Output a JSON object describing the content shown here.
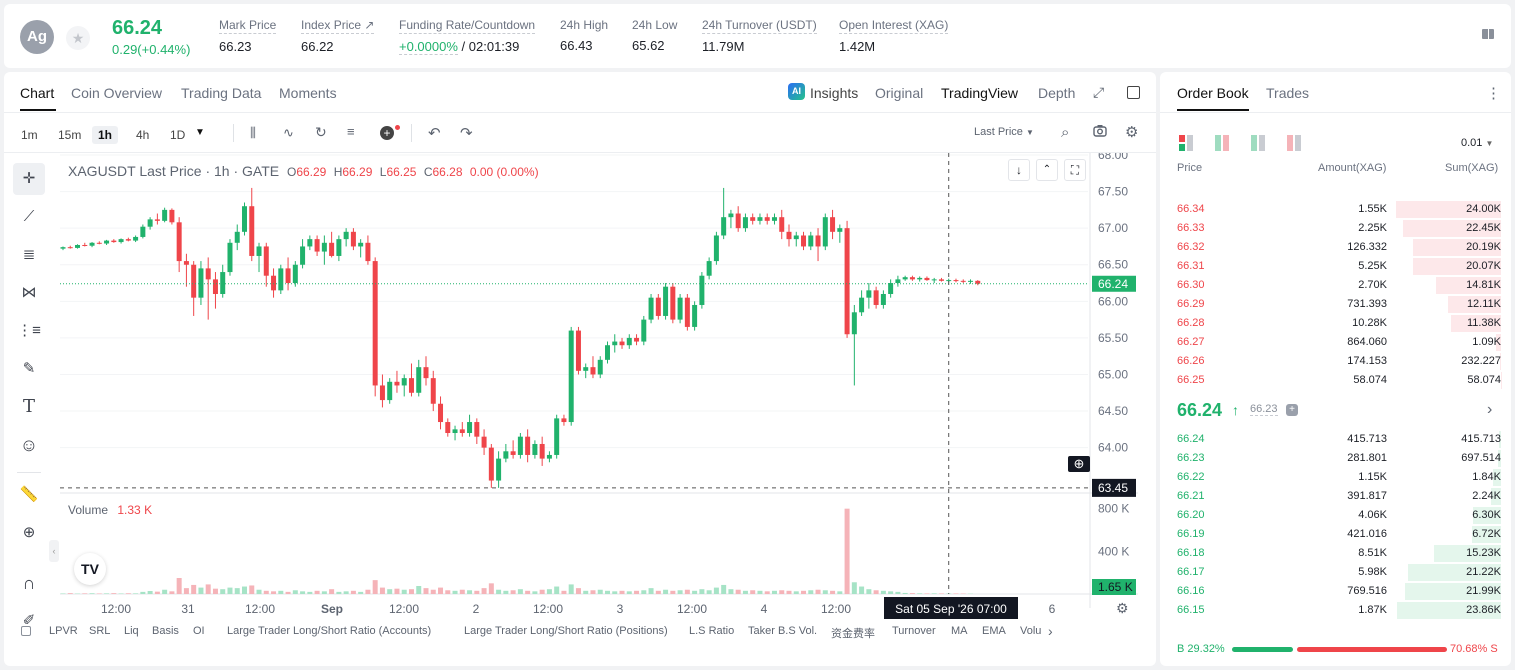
{
  "ticker": {
    "base_icon": "Ag",
    "last": "66.24",
    "change": "0.29(+0.44%)",
    "stats": [
      {
        "label": "Mark Price",
        "value": "66.23"
      },
      {
        "label": "Index Price ↗",
        "value": "66.22"
      },
      {
        "label": "Funding Rate/Countdown",
        "value": "+0.0000%",
        "value2": "/ 02:01:39"
      },
      {
        "label": "24h High",
        "value": "66.43"
      },
      {
        "label": "24h Low",
        "value": "65.62"
      },
      {
        "label": "24h Turnover (USDT)",
        "value": "11.79M"
      },
      {
        "label": "Open Interest (XAG)",
        "value": "1.42M"
      }
    ]
  },
  "chart_tabs": {
    "chart": "Chart",
    "overview": "Coin Overview",
    "data": "Trading Data",
    "moments": "Moments"
  },
  "view_tabs": {
    "insights": "Insights",
    "original": "Original",
    "tradingview": "TradingView",
    "depth": "Depth"
  },
  "timeframes": [
    "1m",
    "15m",
    "1h",
    "4h",
    "1D"
  ],
  "price_type": "Last Price",
  "legend": {
    "symbol": "XAGUSDT Last Price · 1h · GATE",
    "o": "66.29",
    "h": "66.29",
    "l": "66.25",
    "c": "66.28",
    "chg": "0.00 (0.00%)"
  },
  "volume_legend": {
    "label": "Volume",
    "value": "1.33 K"
  },
  "price_axis": [
    "68.00",
    "67.50",
    "67.00",
    "66.50",
    "66.00",
    "65.50",
    "65.00",
    "64.50",
    "64.00"
  ],
  "price_badge": "66.24",
  "cross_badge": "63.45",
  "volume_axis": [
    "800 K",
    "400 K"
  ],
  "volume_badge": "1.65 K",
  "time_axis": [
    "12:00",
    "31",
    "12:00",
    "Sep",
    "12:00",
    "2",
    "12:00",
    "3",
    "12:00",
    "4",
    "12:00",
    "6"
  ],
  "time_badge": "Sat 05 Sep '26   07:00",
  "indicators": [
    "LPVR",
    "SRL",
    "Liq",
    "Basis",
    "OI",
    "Large Trader Long/Short Ratio (Accounts)",
    "Large Trader Long/Short Ratio (Positions)",
    "L.S Ratio",
    "Taker B.S Vol.",
    "资金费率",
    "Turnover",
    "MA",
    "EMA",
    "Volu"
  ],
  "chart_data": {
    "type": "candlestick",
    "title": "XAGUSDT Last Price · 1h · GATE",
    "y_range": [
      63.4,
      68.0
    ],
    "last": 66.24,
    "candles": [
      [
        66.72,
        66.75,
        66.7,
        66.74
      ],
      [
        66.74,
        66.76,
        66.72,
        66.73
      ],
      [
        66.73,
        66.78,
        66.72,
        66.77
      ],
      [
        66.77,
        66.8,
        66.75,
        66.76
      ],
      [
        66.76,
        66.81,
        66.74,
        66.8
      ],
      [
        66.8,
        66.82,
        66.78,
        66.79
      ],
      [
        66.79,
        66.84,
        66.77,
        66.83
      ],
      [
        66.83,
        66.85,
        66.8,
        66.81
      ],
      [
        66.81,
        66.86,
        66.79,
        66.85
      ],
      [
        66.85,
        66.87,
        66.82,
        66.83
      ],
      [
        66.83,
        66.9,
        66.81,
        66.88
      ],
      [
        66.88,
        67.05,
        66.86,
        67.02
      ],
      [
        67.02,
        67.15,
        66.98,
        67.12
      ],
      [
        67.12,
        67.2,
        67.05,
        67.1
      ],
      [
        67.1,
        67.28,
        67.08,
        67.25
      ],
      [
        67.25,
        67.27,
        67.05,
        67.08
      ],
      [
        67.08,
        67.15,
        66.4,
        66.55
      ],
      [
        66.55,
        66.65,
        66.2,
        66.5
      ],
      [
        66.5,
        66.55,
        65.8,
        66.05
      ],
      [
        66.05,
        66.55,
        65.95,
        66.45
      ],
      [
        66.45,
        66.6,
        65.75,
        66.3
      ],
      [
        66.3,
        66.4,
        65.9,
        66.1
      ],
      [
        66.1,
        66.5,
        66.05,
        66.4
      ],
      [
        66.4,
        66.85,
        66.35,
        66.8
      ],
      [
        66.8,
        67.05,
        66.7,
        66.95
      ],
      [
        66.95,
        67.35,
        66.9,
        67.3
      ],
      [
        67.3,
        67.55,
        66.55,
        66.62
      ],
      [
        66.62,
        66.8,
        66.4,
        66.75
      ],
      [
        66.75,
        66.8,
        66.2,
        66.35
      ],
      [
        66.35,
        66.45,
        66.05,
        66.15
      ],
      [
        66.15,
        66.5,
        66.1,
        66.45
      ],
      [
        66.45,
        66.6,
        66.15,
        66.25
      ],
      [
        66.25,
        66.55,
        66.2,
        66.5
      ],
      [
        66.5,
        66.85,
        66.45,
        66.75
      ],
      [
        66.75,
        66.9,
        66.7,
        66.85
      ],
      [
        66.85,
        66.9,
        66.62,
        66.68
      ],
      [
        66.68,
        66.9,
        66.5,
        66.8
      ],
      [
        66.8,
        66.95,
        66.6,
        66.62
      ],
      [
        66.62,
        66.9,
        66.55,
        66.85
      ],
      [
        66.85,
        67.0,
        66.75,
        66.95
      ],
      [
        66.95,
        67.0,
        66.7,
        66.75
      ],
      [
        66.75,
        66.85,
        66.6,
        66.8
      ],
      [
        66.8,
        66.9,
        66.5,
        66.55
      ],
      [
        66.55,
        66.6,
        64.7,
        64.85
      ],
      [
        64.85,
        65.0,
        64.55,
        64.65
      ],
      [
        64.65,
        64.95,
        64.6,
        64.9
      ],
      [
        64.9,
        65.05,
        64.75,
        64.85
      ],
      [
        64.85,
        65.0,
        64.7,
        64.95
      ],
      [
        64.95,
        65.15,
        64.7,
        64.75
      ],
      [
        64.75,
        65.2,
        64.7,
        65.1
      ],
      [
        65.1,
        65.25,
        64.85,
        64.95
      ],
      [
        64.95,
        65.05,
        64.5,
        64.6
      ],
      [
        64.6,
        64.7,
        64.25,
        64.35
      ],
      [
        64.35,
        64.4,
        64.15,
        64.2
      ],
      [
        64.2,
        64.3,
        64.1,
        64.25
      ],
      [
        64.25,
        64.35,
        64.15,
        64.2
      ],
      [
        64.2,
        64.45,
        64.15,
        64.35
      ],
      [
        64.35,
        64.4,
        64.05,
        64.15
      ],
      [
        64.15,
        64.25,
        63.9,
        64.0
      ],
      [
        64.0,
        64.05,
        63.45,
        63.55
      ],
      [
        63.55,
        63.95,
        63.45,
        63.85
      ],
      [
        63.85,
        64.05,
        63.8,
        63.95
      ],
      [
        63.95,
        64.1,
        63.85,
        63.9
      ],
      [
        63.9,
        64.2,
        63.85,
        64.15
      ],
      [
        64.15,
        64.25,
        63.8,
        63.9
      ],
      [
        63.9,
        64.1,
        63.85,
        64.05
      ],
      [
        64.05,
        64.15,
        63.75,
        63.85
      ],
      [
        63.85,
        63.95,
        63.8,
        63.9
      ],
      [
        63.9,
        64.45,
        63.85,
        64.4
      ],
      [
        64.4,
        64.45,
        64.3,
        64.35
      ],
      [
        64.35,
        65.65,
        64.3,
        65.6
      ],
      [
        65.6,
        65.65,
        65.0,
        65.05
      ],
      [
        65.05,
        65.15,
        64.95,
        65.1
      ],
      [
        65.1,
        65.25,
        64.95,
        65.0
      ],
      [
        65.0,
        65.25,
        64.95,
        65.2
      ],
      [
        65.2,
        65.45,
        65.15,
        65.4
      ],
      [
        65.4,
        65.55,
        65.3,
        65.45
      ],
      [
        65.45,
        65.5,
        65.35,
        65.4
      ],
      [
        65.4,
        65.55,
        65.35,
        65.5
      ],
      [
        65.5,
        65.55,
        65.4,
        65.45
      ],
      [
        65.45,
        65.8,
        65.4,
        65.75
      ],
      [
        65.75,
        66.1,
        65.7,
        66.05
      ],
      [
        66.05,
        66.1,
        65.75,
        65.8
      ],
      [
        65.8,
        66.25,
        65.75,
        66.2
      ],
      [
        66.2,
        66.25,
        65.7,
        65.75
      ],
      [
        65.75,
        66.1,
        65.7,
        66.05
      ],
      [
        66.05,
        66.1,
        65.6,
        65.65
      ],
      [
        65.65,
        66.0,
        65.6,
        65.95
      ],
      [
        65.95,
        66.4,
        65.9,
        66.35
      ],
      [
        66.35,
        66.6,
        66.3,
        66.55
      ],
      [
        66.55,
        66.95,
        66.5,
        66.9
      ],
      [
        66.9,
        67.55,
        66.85,
        67.15
      ],
      [
        67.15,
        67.25,
        67.0,
        67.2
      ],
      [
        67.2,
        67.3,
        66.95,
        67.0
      ],
      [
        67.0,
        67.2,
        66.95,
        67.15
      ],
      [
        67.15,
        67.2,
        67.05,
        67.1
      ],
      [
        67.1,
        67.2,
        67.05,
        67.15
      ],
      [
        67.15,
        67.2,
        67.05,
        67.1
      ],
      [
        67.1,
        67.2,
        67.05,
        67.15
      ],
      [
        67.15,
        67.25,
        66.85,
        66.95
      ],
      [
        66.95,
        67.05,
        66.75,
        66.85
      ],
      [
        66.85,
        66.95,
        66.75,
        66.9
      ],
      [
        66.9,
        66.95,
        66.7,
        66.75
      ],
      [
        66.75,
        66.95,
        66.7,
        66.9
      ],
      [
        66.9,
        67.0,
        66.55,
        66.75
      ],
      [
        66.75,
        67.2,
        66.7,
        67.15
      ],
      [
        67.15,
        67.25,
        66.85,
        66.95
      ],
      [
        66.95,
        67.05,
        66.8,
        67.0
      ],
      [
        67.0,
        67.1,
        65.5,
        65.55
      ],
      [
        65.55,
        65.95,
        64.85,
        65.85
      ],
      [
        65.85,
        66.15,
        65.8,
        66.05
      ],
      [
        66.05,
        66.25,
        65.9,
        66.15
      ],
      [
        66.15,
        66.2,
        65.9,
        65.95
      ],
      [
        65.95,
        66.15,
        65.9,
        66.1
      ],
      [
        66.1,
        66.3,
        66.05,
        66.25
      ],
      [
        66.25,
        66.35,
        66.2,
        66.3
      ],
      [
        66.3,
        66.35,
        66.28,
        66.33
      ],
      [
        66.33,
        66.35,
        66.28,
        66.3
      ],
      [
        66.3,
        66.34,
        66.27,
        66.32
      ],
      [
        66.32,
        66.34,
        66.28,
        66.29
      ],
      [
        66.29,
        66.32,
        66.25,
        66.3
      ],
      [
        66.3,
        66.32,
        66.27,
        66.28
      ],
      [
        66.28,
        66.31,
        66.26,
        66.29
      ],
      [
        66.29,
        66.31,
        66.26,
        66.28
      ],
      [
        66.28,
        66.3,
        66.25,
        66.27
      ],
      [
        66.27,
        66.3,
        66.24,
        66.28
      ],
      [
        66.28,
        66.29,
        66.22,
        66.24
      ]
    ],
    "volume": [
      5,
      8,
      4,
      6,
      7,
      5,
      6,
      8,
      5,
      7,
      6,
      20,
      28,
      22,
      40,
      25,
      150,
      55,
      85,
      60,
      90,
      50,
      45,
      60,
      55,
      70,
      80,
      40,
      30,
      25,
      30,
      20,
      35,
      25,
      20,
      30,
      25,
      45,
      20,
      25,
      30,
      20,
      40,
      130,
      60,
      45,
      50,
      40,
      45,
      75,
      55,
      40,
      60,
      35,
      30,
      40,
      35,
      30,
      55,
      100,
      40,
      30,
      35,
      45,
      30,
      25,
      40,
      45,
      70,
      30,
      90,
      55,
      30,
      35,
      40,
      30,
      25,
      30,
      25,
      30,
      35,
      55,
      30,
      40,
      30,
      35,
      40,
      30,
      45,
      35,
      60,
      85,
      45,
      40,
      30,
      35,
      30,
      25,
      30,
      35,
      30,
      25,
      30,
      35,
      40,
      35,
      30,
      25,
      800,
      110,
      70,
      45,
      35,
      30,
      25,
      20,
      10,
      8,
      6,
      5,
      6,
      5,
      4,
      5,
      4,
      3
    ]
  },
  "orderbook": {
    "tab_book": "Order Book",
    "tab_trades": "Trades",
    "precision": "0.01",
    "col_price": "Price",
    "col_amount": "Amount(XAG)",
    "col_sum": "Sum(XAG)",
    "asks": [
      [
        "66.34",
        "1.55K",
        "24.00K"
      ],
      [
        "66.33",
        "2.25K",
        "22.45K"
      ],
      [
        "66.32",
        "126.332",
        "20.19K"
      ],
      [
        "66.31",
        "5.25K",
        "20.07K"
      ],
      [
        "66.30",
        "2.70K",
        "14.81K"
      ],
      [
        "66.29",
        "731.393",
        "12.11K"
      ],
      [
        "66.28",
        "10.28K",
        "11.38K"
      ],
      [
        "66.27",
        "864.060",
        "1.09K"
      ],
      [
        "66.26",
        "174.153",
        "232.227"
      ],
      [
        "66.25",
        "58.074",
        "58.074"
      ]
    ],
    "asks_depth": [
      1.0,
      0.935,
      0.841,
      0.836,
      0.617,
      0.505,
      0.474,
      0.045,
      0.01,
      0.002
    ],
    "mid": "66.24",
    "mid_mark": "66.23",
    "bids": [
      [
        "66.24",
        "415.713",
        "415.713"
      ],
      [
        "66.23",
        "281.801",
        "697.514"
      ],
      [
        "66.22",
        "1.15K",
        "1.84K"
      ],
      [
        "66.21",
        "391.817",
        "2.24K"
      ],
      [
        "66.20",
        "4.06K",
        "6.30K"
      ],
      [
        "66.19",
        "421.016",
        "6.72K"
      ],
      [
        "66.18",
        "8.51K",
        "15.23K"
      ],
      [
        "66.17",
        "5.98K",
        "21.22K"
      ],
      [
        "66.16",
        "769.516",
        "21.99K"
      ],
      [
        "66.15",
        "1.87K",
        "23.86K"
      ]
    ],
    "bids_depth": [
      0.017,
      0.029,
      0.077,
      0.093,
      0.263,
      0.28,
      0.635,
      0.884,
      0.916,
      0.994
    ],
    "buy_label": "B",
    "buy_pct": "29.32%",
    "sell_pct": "70.68%",
    "sell_label": "S",
    "buy_ratio": 0.2932
  },
  "colors": {
    "up": "#20b26c",
    "down": "#ef454a",
    "up_vol": "#a6e3c6",
    "down_vol": "#f5b3b8"
  }
}
